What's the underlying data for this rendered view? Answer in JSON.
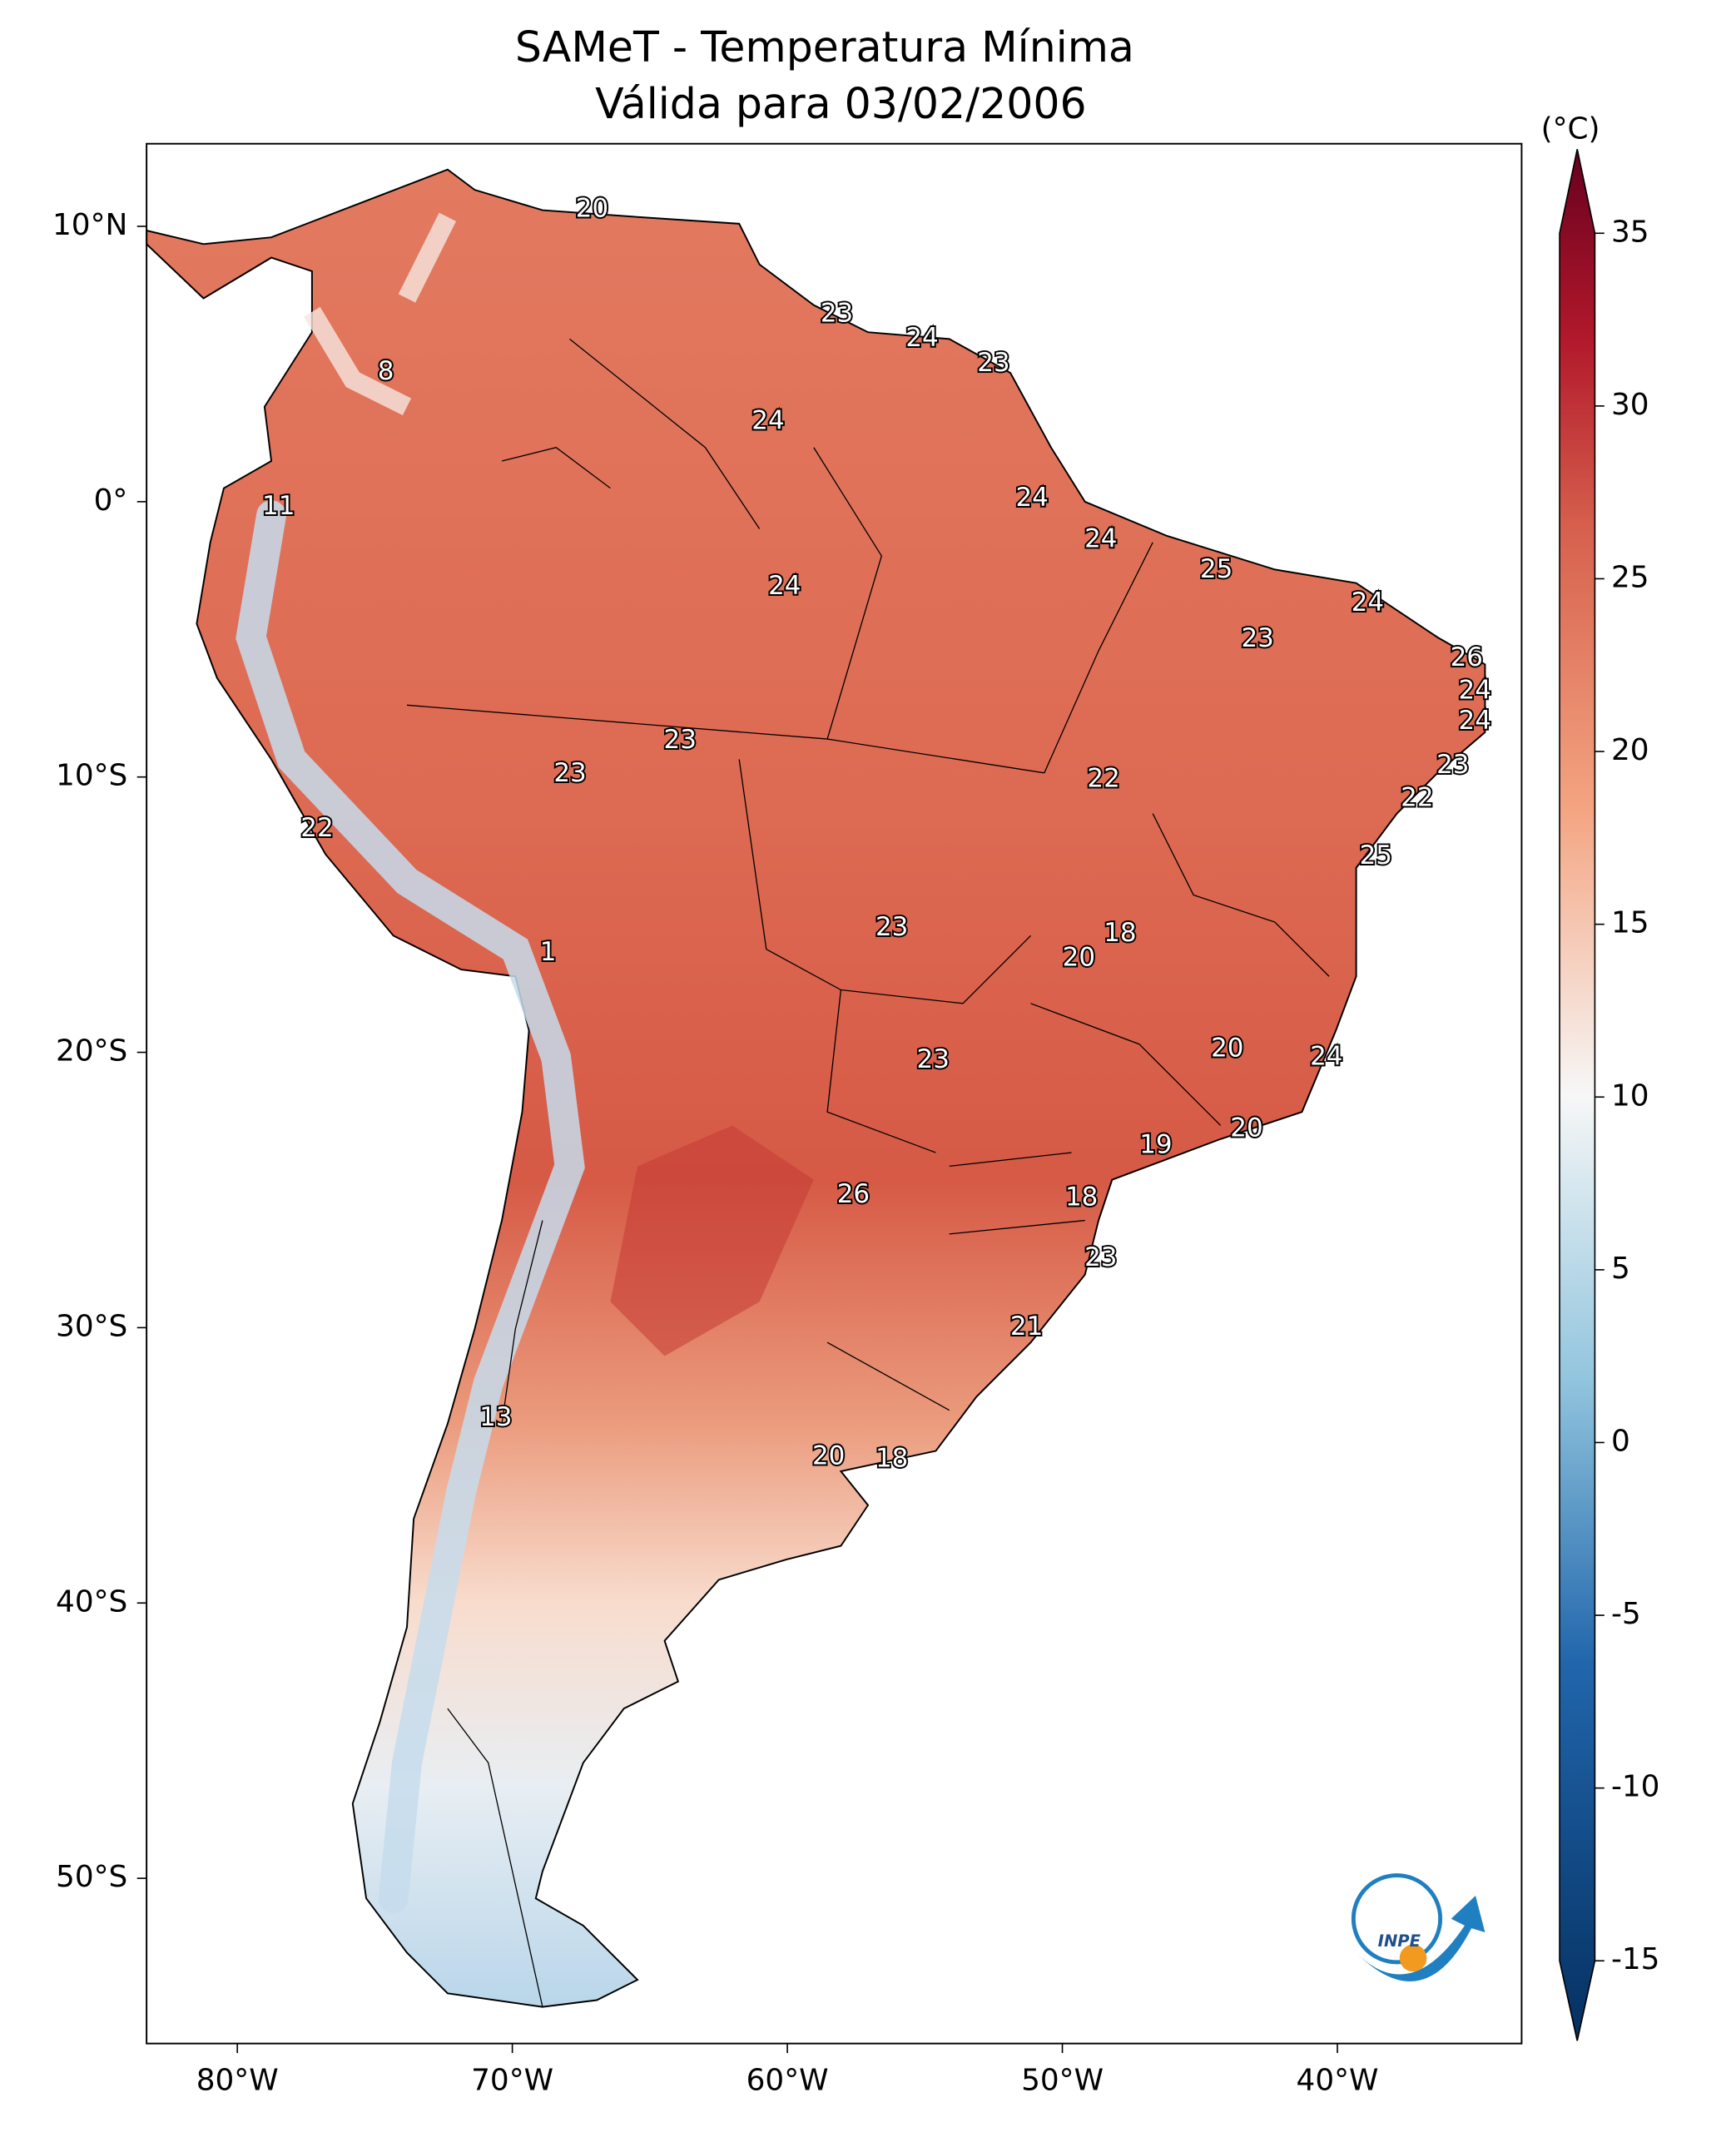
{
  "title": "SAMeT - Temperatura Mínima",
  "subtitle": "Válida para 03/02/2006",
  "map": {
    "xlim": [
      -83.3,
      -33.3
    ],
    "ylim": [
      -56.0,
      13.0
    ],
    "xticks": [
      {
        "value": -80,
        "label": "80°W"
      },
      {
        "value": -70,
        "label": "70°W"
      },
      {
        "value": -60,
        "label": "60°W"
      },
      {
        "value": -50,
        "label": "50°W"
      },
      {
        "value": -40,
        "label": "40°W"
      }
    ],
    "yticks": [
      {
        "value": 10,
        "label": "10°N"
      },
      {
        "value": 0,
        "label": "0°"
      },
      {
        "value": -10,
        "label": "10°S"
      },
      {
        "value": -20,
        "label": "20°S"
      },
      {
        "value": -30,
        "label": "30°S"
      },
      {
        "value": -40,
        "label": "40°S"
      },
      {
        "value": -50,
        "label": "50°S"
      }
    ]
  },
  "colorbar": {
    "label": "(°C)",
    "lim": [
      -15,
      35
    ],
    "ticks": [
      -15,
      -10,
      -5,
      0,
      5,
      10,
      15,
      20,
      25,
      30,
      35
    ]
  },
  "stations": [
    {
      "value": 20,
      "lon": -67.1,
      "lat": 10.6
    },
    {
      "value": 23,
      "lon": -58.2,
      "lat": 6.8
    },
    {
      "value": 24,
      "lon": -55.1,
      "lat": 5.9
    },
    {
      "value": 23,
      "lon": -52.5,
      "lat": 5.0
    },
    {
      "value": 8,
      "lon": -74.6,
      "lat": 4.7
    },
    {
      "value": 24,
      "lon": -60.7,
      "lat": 2.9
    },
    {
      "value": 11,
      "lon": -78.5,
      "lat": -0.2
    },
    {
      "value": 24,
      "lon": -51.1,
      "lat": 0.1
    },
    {
      "value": 24,
      "lon": -48.6,
      "lat": -1.4
    },
    {
      "value": 25,
      "lon": -44.4,
      "lat": -2.5
    },
    {
      "value": 24,
      "lon": -60.1,
      "lat": -3.1
    },
    {
      "value": 24,
      "lon": -38.9,
      "lat": -3.7
    },
    {
      "value": 23,
      "lon": -42.9,
      "lat": -5.0
    },
    {
      "value": 26,
      "lon": -35.3,
      "lat": -5.7
    },
    {
      "value": 24,
      "lon": -35.0,
      "lat": -6.9
    },
    {
      "value": 24,
      "lon": -35.0,
      "lat": -8.0
    },
    {
      "value": 23,
      "lon": -63.9,
      "lat": -8.7
    },
    {
      "value": 22,
      "lon": -48.5,
      "lat": -10.1
    },
    {
      "value": 23,
      "lon": -35.8,
      "lat": -9.6
    },
    {
      "value": 23,
      "lon": -67.9,
      "lat": -9.9
    },
    {
      "value": 22,
      "lon": -37.1,
      "lat": -10.8
    },
    {
      "value": 22,
      "lon": -77.1,
      "lat": -11.9
    },
    {
      "value": 25,
      "lon": -38.6,
      "lat": -12.9
    },
    {
      "value": 23,
      "lon": -56.2,
      "lat": -15.5
    },
    {
      "value": 18,
      "lon": -47.9,
      "lat": -15.7
    },
    {
      "value": 20,
      "lon": -49.4,
      "lat": -16.6
    },
    {
      "value": 1,
      "lon": -68.7,
      "lat": -16.4
    },
    {
      "value": 20,
      "lon": -44.0,
      "lat": -19.9
    },
    {
      "value": 23,
      "lon": -54.7,
      "lat": -20.3
    },
    {
      "value": 24,
      "lon": -40.4,
      "lat": -20.2
    },
    {
      "value": 20,
      "lon": -43.3,
      "lat": -22.8
    },
    {
      "value": 19,
      "lon": -46.6,
      "lat": -23.4
    },
    {
      "value": 26,
      "lon": -57.6,
      "lat": -25.2
    },
    {
      "value": 18,
      "lon": -49.3,
      "lat": -25.3
    },
    {
      "value": 23,
      "lon": -48.6,
      "lat": -27.5
    },
    {
      "value": 21,
      "lon": -51.3,
      "lat": -30.0
    },
    {
      "value": 13,
      "lon": -70.6,
      "lat": -33.3
    },
    {
      "value": 20,
      "lon": -58.5,
      "lat": -34.7
    },
    {
      "value": 18,
      "lon": -56.2,
      "lat": -34.8
    }
  ],
  "logo": "INPE"
}
